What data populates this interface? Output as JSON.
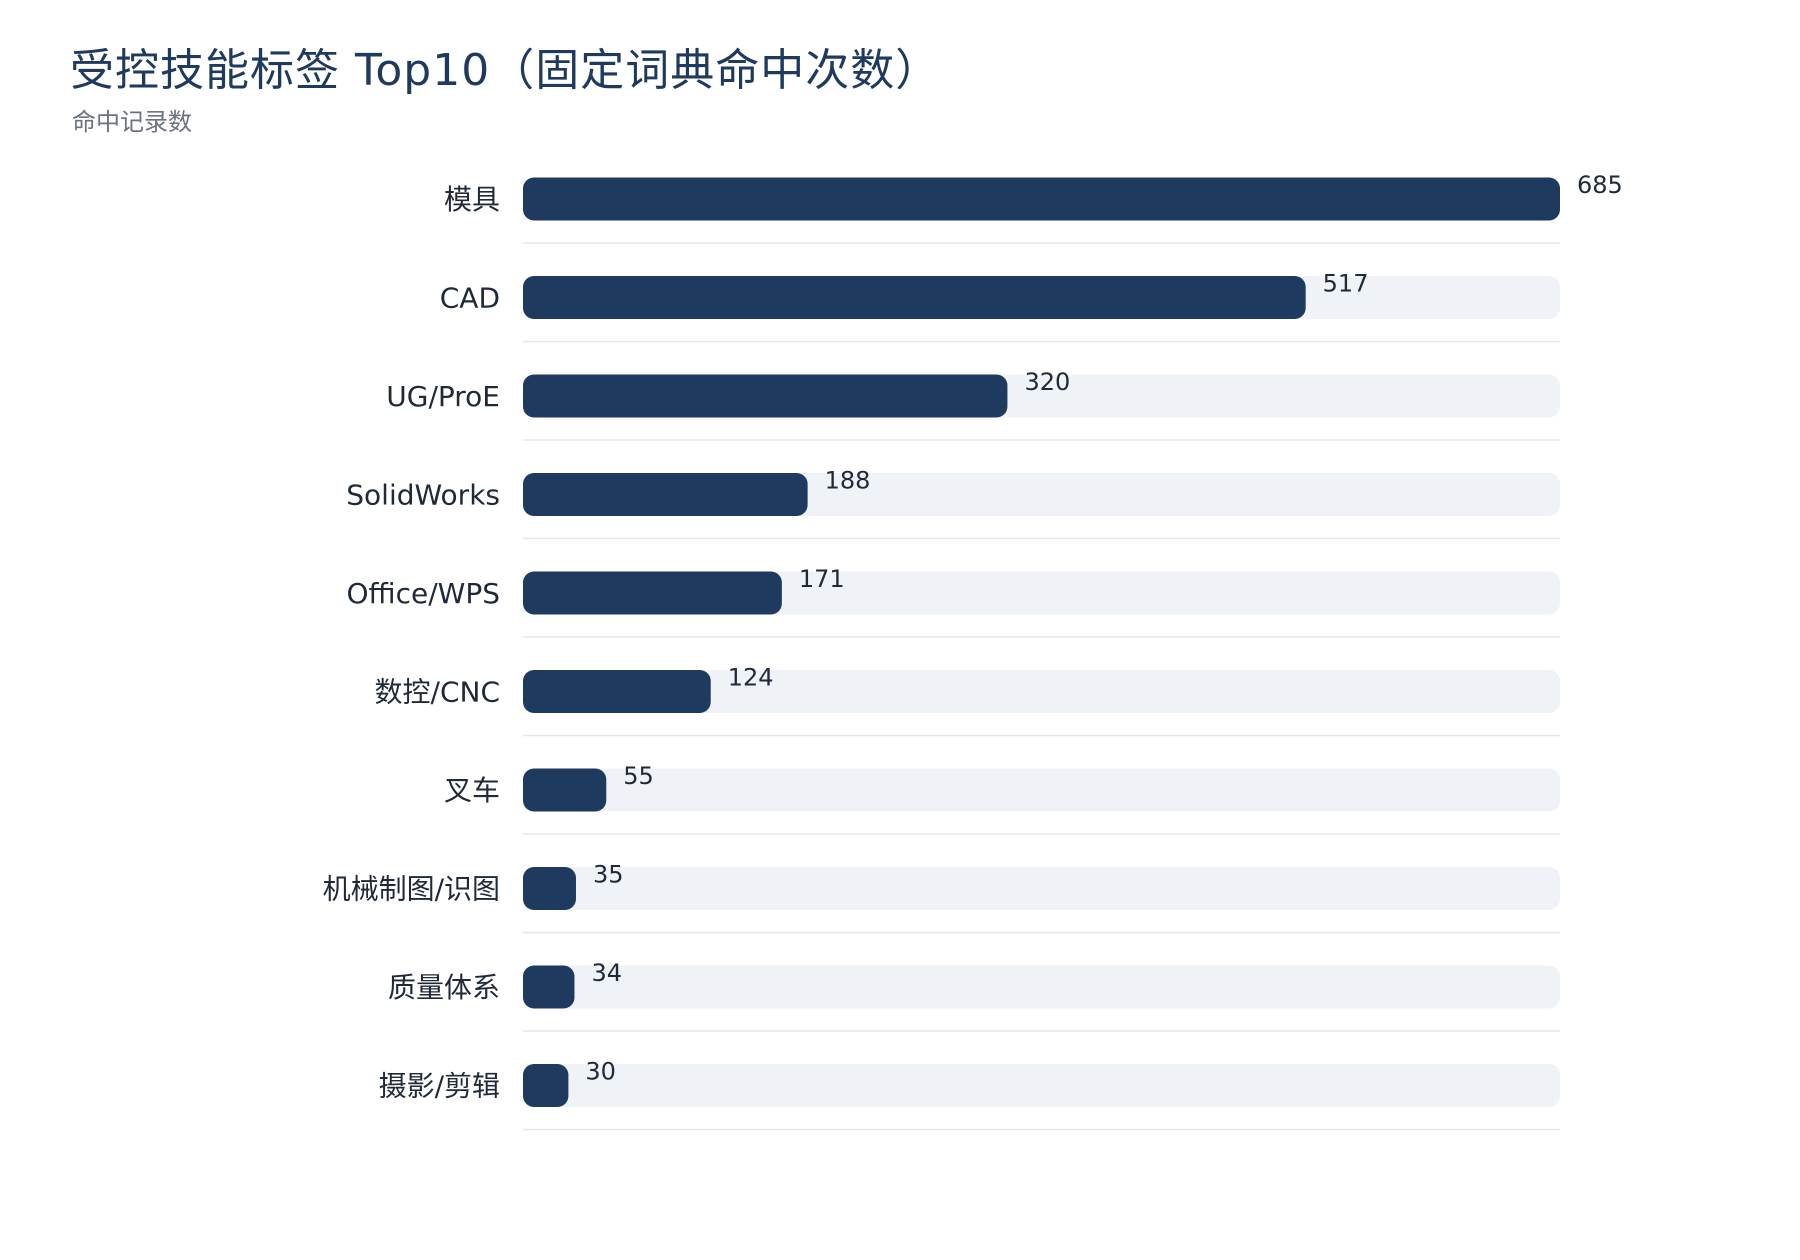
{
  "chart_data": {
    "type": "bar",
    "orientation": "horizontal",
    "title": "受控技能标签 Top10（固定词典命中次数）",
    "subtitle": "命中记录数",
    "categories": [
      "模具",
      "CAD",
      "UG/ProE",
      "SolidWorks",
      "Office/WPS",
      "数控/CNC",
      "叉车",
      "机械制图/识图",
      "质量体系",
      "摄影/剪辑"
    ],
    "values": [
      685,
      517,
      320,
      188,
      171,
      124,
      55,
      35,
      34,
      30
    ],
    "xlim": [
      0,
      685
    ],
    "grid": false,
    "colors": {
      "bar": "#1f3a5f",
      "track": "#eff3f7",
      "separator": "#e5e7eb"
    }
  }
}
